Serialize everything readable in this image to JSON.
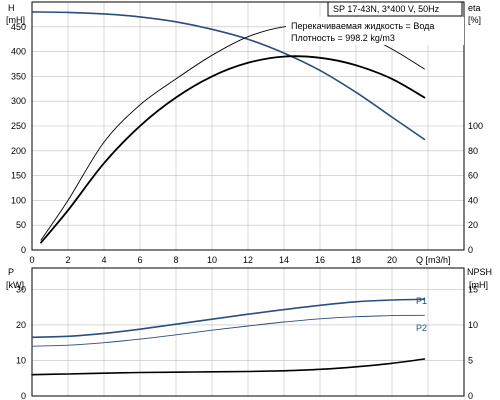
{
  "header": {
    "model": "SP 17-43N, 3*400 V, 50Hz",
    "liquid": "Перекачиваемая жидкость = Вода",
    "density": "Плотность = 998.2 kg/m3"
  },
  "colors": {
    "blue": "#2a4f7d",
    "black": "#000000",
    "grid": "#bfbfbf"
  },
  "chart_data": [
    {
      "type": "line",
      "ylabel_left": [
        "H",
        "[mH]"
      ],
      "ylabel_right": [
        "eta",
        "[%]"
      ],
      "xlabel": "Q [m3/h]",
      "x_ticks": [
        "0",
        "2",
        "4",
        "6",
        "8",
        "10",
        "12",
        "14",
        "16",
        "18",
        "20"
      ],
      "y_left_ticks": [
        "0",
        "50",
        "100",
        "150",
        "200",
        "250",
        "300",
        "350",
        "400",
        "450"
      ],
      "y_right_ticks": [
        "0",
        "20",
        "40",
        "60",
        "80",
        "100"
      ],
      "xlim": [
        0,
        24
      ],
      "ylim_left": [
        0,
        500
      ],
      "ylim_right": [
        0,
        200
      ],
      "grid": true,
      "series": [
        {
          "axis": "left",
          "color": "blue",
          "width": 1.6,
          "x": [
            0,
            2,
            4,
            6,
            8,
            10,
            12,
            14,
            16,
            18,
            20,
            21.8
          ],
          "y": [
            480,
            479,
            476,
            470,
            460,
            445,
            425,
            397,
            362,
            318,
            268,
            223
          ]
        },
        {
          "axis": "right",
          "color": "black",
          "width": 0.9,
          "x": [
            0.5,
            2,
            4,
            6,
            8,
            10,
            12,
            14,
            16,
            18,
            20,
            21.8
          ],
          "y": [
            8,
            40,
            87,
            117,
            138,
            157,
            172,
            180,
            181,
            176,
            162,
            146
          ]
        },
        {
          "axis": "right",
          "color": "black",
          "width": 1.8,
          "x": [
            0.5,
            2,
            4,
            6,
            8,
            10,
            12,
            14,
            16,
            18,
            20,
            21.8
          ],
          "y": [
            6,
            32,
            70,
            100,
            123,
            140,
            151,
            156,
            155,
            149,
            138,
            123
          ]
        }
      ]
    },
    {
      "type": "line",
      "ylabel_left": [
        "P",
        "[kW]"
      ],
      "ylabel_right": [
        "NPSH",
        "[mH]"
      ],
      "y_left_ticks": [
        "0",
        "10",
        "20",
        "30"
      ],
      "y_right_ticks": [
        "0",
        "5",
        "10",
        "15"
      ],
      "xlim": [
        0,
        24
      ],
      "ylim_left": [
        0,
        36
      ],
      "ylim_right": [
        0,
        18
      ],
      "grid": true,
      "series": [
        {
          "name": "P1",
          "axis": "left",
          "color": "blue",
          "width": 1.6,
          "x": [
            0,
            2,
            4,
            6,
            8,
            10,
            12,
            14,
            16,
            18,
            20,
            21.8
          ],
          "y": [
            16.5,
            16.8,
            17.6,
            18.8,
            20.2,
            21.6,
            23,
            24.3,
            25.5,
            26.5,
            27,
            27.2
          ]
        },
        {
          "name": "P2",
          "axis": "left",
          "color": "blue",
          "width": 0.9,
          "x": [
            0,
            2,
            4,
            6,
            8,
            10,
            12,
            14,
            16,
            18,
            20,
            21.8
          ],
          "y": [
            14,
            14.3,
            15,
            16,
            17.2,
            18.5,
            19.7,
            20.8,
            21.7,
            22.3,
            22.6,
            22.7
          ]
        },
        {
          "axis": "right",
          "color": "black",
          "width": 1.6,
          "x": [
            0,
            2,
            4,
            6,
            8,
            10,
            12,
            14,
            16,
            18,
            20,
            21.8
          ],
          "y": [
            3,
            3.1,
            3.2,
            3.3,
            3.35,
            3.4,
            3.45,
            3.55,
            3.75,
            4.1,
            4.6,
            5.2
          ]
        }
      ]
    }
  ]
}
